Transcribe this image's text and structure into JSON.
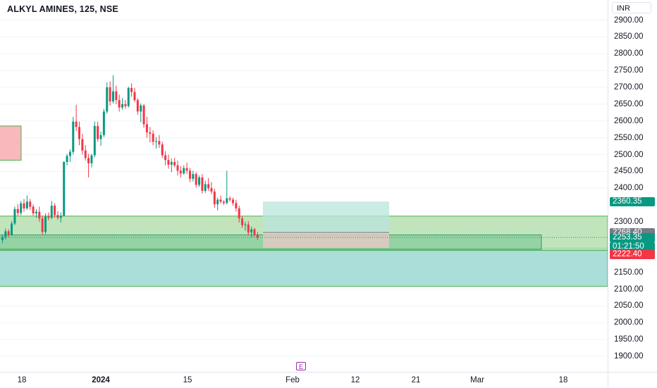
{
  "header": {
    "title": "ALKYL AMINES, 125, NSE",
    "currency": "INR"
  },
  "price_axis": {
    "ticks": [
      "2900.00",
      "2850.00",
      "2800.00",
      "2750.00",
      "2700.00",
      "2650.00",
      "2600.00",
      "2550.00",
      "2500.00",
      "2450.00",
      "2400.00",
      "2300.00",
      "2150.00",
      "2100.00",
      "2050.00",
      "2000.00",
      "1950.00",
      "1900.00"
    ],
    "labels": {
      "target": {
        "text": "2360.35",
        "color": "#089981"
      },
      "entry": {
        "text": "2268.40",
        "color": "#787b86"
      },
      "last": {
        "text": "2253.35",
        "color": "#089981"
      },
      "countdown": {
        "text": "01:21:50",
        "color": "#089981"
      },
      "stop": {
        "text": "2222.40",
        "color": "#f23645"
      }
    }
  },
  "time_axis": {
    "labels": [
      "18",
      "2024",
      "15",
      "Feb",
      "12",
      "21",
      "Mar",
      "18"
    ],
    "earnings_marker": "E"
  },
  "colors": {
    "up": "#089981",
    "down": "#f23645",
    "demand_zone": "#b7dfb0",
    "lower_zone": "#8fd3cb",
    "supply_zone": "#f7b9bc",
    "target_box": "#b9e4dc",
    "stop_box": "#f4c7c9"
  },
  "chart_data": {
    "type": "candlestick",
    "title": "ALKYL AMINES, 125, NSE",
    "currency": "INR",
    "ylim": [
      1880,
      2925
    ],
    "y_ticks": [
      1900,
      1950,
      2000,
      2050,
      2100,
      2150,
      2300,
      2400,
      2450,
      2500,
      2550,
      2600,
      2650,
      2700,
      2750,
      2800,
      2850,
      2900
    ],
    "x_tick_labels": [
      "18",
      "2024",
      "15",
      "Feb",
      "12",
      "21",
      "Mar",
      "18"
    ],
    "zones": [
      {
        "name": "supply",
        "low": 2483,
        "high": 2585
      },
      {
        "name": "demand",
        "low": 2215,
        "high": 2317
      },
      {
        "name": "lower",
        "low": 2108,
        "high": 2222
      },
      {
        "name": "base",
        "low": 2218,
        "high": 2261
      }
    ],
    "position": {
      "entry": 2268.4,
      "target": 2360.35,
      "stop": 2222.4
    },
    "last_price": 2253.35,
    "candles": [
      [
        2246,
        2262,
        2236,
        2255
      ],
      [
        2255,
        2280,
        2248,
        2272
      ],
      [
        2272,
        2278,
        2254,
        2262
      ],
      [
        2262,
        2302,
        2258,
        2295
      ],
      [
        2295,
        2345,
        2290,
        2338
      ],
      [
        2338,
        2352,
        2318,
        2326
      ],
      [
        2326,
        2362,
        2320,
        2355
      ],
      [
        2355,
        2368,
        2330,
        2340
      ],
      [
        2340,
        2378,
        2336,
        2360
      ],
      [
        2360,
        2368,
        2335,
        2345
      ],
      [
        2345,
        2352,
        2318,
        2325
      ],
      [
        2325,
        2338,
        2312,
        2330
      ],
      [
        2330,
        2345,
        2300,
        2310
      ],
      [
        2310,
        2318,
        2262,
        2270
      ],
      [
        2270,
        2325,
        2264,
        2316
      ],
      [
        2316,
        2328,
        2304,
        2312
      ],
      [
        2312,
        2362,
        2308,
        2348
      ],
      [
        2348,
        2355,
        2312,
        2320
      ],
      [
        2320,
        2332,
        2306,
        2312
      ],
      [
        2312,
        2328,
        2298,
        2318
      ],
      [
        2318,
        2480,
        2316,
        2478
      ],
      [
        2478,
        2502,
        2468,
        2496
      ],
      [
        2496,
        2515,
        2478,
        2508
      ],
      [
        2508,
        2612,
        2500,
        2598
      ],
      [
        2598,
        2648,
        2570,
        2582
      ],
      [
        2582,
        2598,
        2528,
        2546
      ],
      [
        2546,
        2562,
        2500,
        2512
      ],
      [
        2512,
        2528,
        2482,
        2490
      ],
      [
        2490,
        2502,
        2432,
        2474
      ],
      [
        2474,
        2502,
        2462,
        2498
      ],
      [
        2498,
        2598,
        2492,
        2585
      ],
      [
        2585,
        2598,
        2538,
        2546
      ],
      [
        2546,
        2568,
        2526,
        2558
      ],
      [
        2558,
        2636,
        2552,
        2628
      ],
      [
        2628,
        2715,
        2622,
        2700
      ],
      [
        2700,
        2718,
        2646,
        2658
      ],
      [
        2658,
        2736,
        2652,
        2688
      ],
      [
        2688,
        2705,
        2650,
        2662
      ],
      [
        2662,
        2678,
        2628,
        2640
      ],
      [
        2640,
        2668,
        2634,
        2650
      ],
      [
        2650,
        2662,
        2636,
        2644
      ],
      [
        2644,
        2702,
        2640,
        2698
      ],
      [
        2698,
        2712,
        2672,
        2686
      ],
      [
        2686,
        2698,
        2656,
        2662
      ],
      [
        2662,
        2668,
        2618,
        2628
      ],
      [
        2628,
        2652,
        2596,
        2646
      ],
      [
        2646,
        2650,
        2580,
        2590
      ],
      [
        2590,
        2612,
        2550,
        2566
      ],
      [
        2566,
        2582,
        2536,
        2562
      ],
      [
        2562,
        2572,
        2528,
        2538
      ],
      [
        2538,
        2552,
        2518,
        2540
      ],
      [
        2540,
        2558,
        2520,
        2530
      ],
      [
        2530,
        2538,
        2490,
        2498
      ],
      [
        2498,
        2510,
        2468,
        2484
      ],
      [
        2484,
        2500,
        2458,
        2470
      ],
      [
        2470,
        2488,
        2448,
        2478
      ],
      [
        2478,
        2490,
        2462,
        2468
      ],
      [
        2468,
        2482,
        2438,
        2452
      ],
      [
        2452,
        2466,
        2432,
        2444
      ],
      [
        2444,
        2468,
        2440,
        2460
      ],
      [
        2460,
        2476,
        2442,
        2452
      ],
      [
        2452,
        2460,
        2418,
        2428
      ],
      [
        2428,
        2452,
        2420,
        2442
      ],
      [
        2442,
        2448,
        2402,
        2410
      ],
      [
        2410,
        2438,
        2404,
        2432
      ],
      [
        2432,
        2442,
        2384,
        2392
      ],
      [
        2392,
        2422,
        2386,
        2412
      ],
      [
        2412,
        2430,
        2392,
        2400
      ],
      [
        2400,
        2418,
        2382,
        2390
      ],
      [
        2390,
        2398,
        2342,
        2352
      ],
      [
        2352,
        2372,
        2334,
        2366
      ],
      [
        2366,
        2378,
        2354,
        2360
      ],
      [
        2360,
        2364,
        2350,
        2356
      ],
      [
        2356,
        2452,
        2352,
        2370
      ],
      [
        2370,
        2376,
        2360,
        2366
      ],
      [
        2366,
        2372,
        2348,
        2356
      ],
      [
        2356,
        2366,
        2330,
        2340
      ],
      [
        2340,
        2348,
        2298,
        2310
      ],
      [
        2310,
        2318,
        2282,
        2290
      ],
      [
        2290,
        2300,
        2274,
        2292
      ],
      [
        2292,
        2302,
        2260,
        2268
      ],
      [
        2268,
        2286,
        2254,
        2278
      ],
      [
        2278,
        2282,
        2256,
        2262
      ],
      [
        2262,
        2270,
        2246,
        2253
      ]
    ]
  }
}
